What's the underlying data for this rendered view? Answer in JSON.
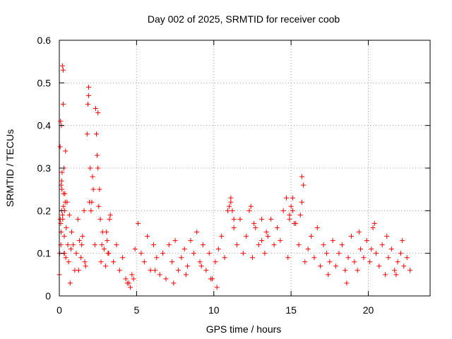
{
  "chart_data": {
    "type": "scatter",
    "title": "Day 002 of 2025, SRMTID for receiver coob",
    "xlabel": "GPS time / hours",
    "ylabel": "SRMTID / TECUs",
    "xlim": [
      0,
      24
    ],
    "ylim": [
      0,
      0.6
    ],
    "xticks": [
      0,
      5,
      10,
      15,
      20
    ],
    "yticks": [
      0,
      0.1,
      0.2,
      0.3,
      0.4,
      0.5,
      0.6
    ],
    "xtick_labels": [
      "0",
      "5",
      "10",
      "15",
      "20"
    ],
    "ytick_labels": [
      "0",
      "0.1",
      "0.2",
      "0.3",
      "0.4",
      "0.5",
      "0.6"
    ],
    "grid": true,
    "marker": "+",
    "color": "#ff0000",
    "series": [
      {
        "name": "coob",
        "x": [
          0.0,
          0.05,
          0.1,
          0.15,
          0.2,
          0.25,
          0.3,
          0.35,
          0.4,
          0.5,
          0.6,
          0.7,
          0.8,
          0.9,
          1.0,
          1.1,
          1.2,
          1.3,
          1.4,
          1.5,
          1.6,
          1.7,
          1.8,
          1.9,
          2.0,
          2.1,
          2.2,
          2.3,
          2.4,
          2.5,
          2.6,
          2.7,
          2.8,
          2.9,
          3.0,
          3.1,
          3.2,
          3.3,
          3.5,
          3.7,
          3.9,
          4.1,
          4.3,
          4.5,
          4.7,
          4.9,
          5.1,
          5.3,
          5.5,
          5.7,
          5.9,
          6.1,
          6.3,
          6.5,
          6.7,
          6.9,
          7.1,
          7.3,
          7.5,
          7.7,
          7.9,
          8.1,
          8.3,
          8.5,
          8.7,
          8.9,
          9.1,
          9.3,
          9.5,
          9.7,
          9.9,
          10.1,
          10.3,
          10.5,
          10.7,
          10.9,
          11.1,
          11.3,
          11.5,
          11.7,
          11.9,
          12.1,
          12.3,
          12.5,
          12.7,
          12.9,
          13.1,
          13.3,
          13.5,
          13.7,
          13.9,
          14.1,
          14.3,
          14.5,
          14.7,
          14.9,
          15.1,
          15.3,
          15.5,
          15.7,
          15.9,
          16.1,
          16.3,
          16.5,
          16.7,
          16.9,
          17.1,
          17.3,
          17.5,
          17.7,
          17.9,
          18.1,
          18.3,
          18.5,
          18.7,
          18.9,
          19.1,
          19.3,
          19.5,
          19.7,
          19.9,
          20.1,
          20.3,
          20.5,
          20.7,
          20.9,
          21.1,
          21.3,
          21.5,
          21.7,
          21.9,
          22.1,
          22.3,
          22.5,
          22.7,
          0.08,
          0.12,
          0.18,
          0.22,
          0.28,
          0.33,
          0.38,
          0.15,
          0.25,
          0.45,
          0.55,
          0.65,
          0.75,
          1.85,
          1.9,
          1.95,
          2.05,
          2.15,
          2.35,
          2.45,
          2.5,
          2.55,
          2.65,
          2.75,
          0.02,
          0.06,
          0.09,
          0.13,
          0.17,
          0.21,
          0.27,
          0.32,
          0.36,
          0.42,
          1.25,
          1.45,
          1.65,
          3.05,
          3.15,
          3.25,
          14.8,
          14.9,
          15.0,
          15.1,
          15.2,
          15.6,
          15.7,
          15.8,
          11.0,
          11.1,
          11.2,
          11.3,
          12.4,
          12.6,
          13.1,
          13.4,
          6.2,
          7.4,
          8.2,
          9.2,
          9.8,
          10.2,
          17.4,
          18.6,
          19.4,
          20.2,
          20.4,
          21.2,
          21.8,
          22.2,
          4.4,
          4.6,
          4.8,
          0.11,
          0.31
        ],
        "y": [
          0.05,
          0.35,
          0.12,
          0.2,
          0.54,
          0.45,
          0.3,
          0.2,
          0.34,
          0.22,
          0.08,
          0.03,
          0.15,
          0.12,
          0.06,
          0.1,
          0.18,
          0.13,
          0.09,
          0.14,
          0.2,
          0.07,
          0.38,
          0.49,
          0.3,
          0.22,
          0.25,
          0.12,
          0.38,
          0.43,
          0.25,
          0.08,
          0.15,
          0.11,
          0.07,
          0.13,
          0.1,
          0.19,
          0.08,
          0.12,
          0.06,
          0.09,
          0.04,
          0.03,
          0.05,
          0.11,
          0.17,
          0.1,
          0.08,
          0.14,
          0.06,
          0.12,
          0.09,
          0.05,
          0.1,
          0.04,
          0.12,
          0.08,
          0.13,
          0.06,
          0.09,
          0.11,
          0.07,
          0.13,
          0.1,
          0.15,
          0.08,
          0.12,
          0.06,
          0.1,
          0.04,
          0.08,
          0.11,
          0.14,
          0.09,
          0.2,
          0.22,
          0.16,
          0.12,
          0.18,
          0.1,
          0.14,
          0.2,
          0.09,
          0.16,
          0.12,
          0.18,
          0.1,
          0.14,
          0.18,
          0.12,
          0.16,
          0.13,
          0.2,
          0.23,
          0.18,
          0.2,
          0.17,
          0.12,
          0.22,
          0.08,
          0.11,
          0.14,
          0.09,
          0.16,
          0.07,
          0.12,
          0.1,
          0.08,
          0.13,
          0.07,
          0.1,
          0.12,
          0.06,
          0.09,
          0.14,
          0.08,
          0.06,
          0.11,
          0.09,
          0.13,
          0.08,
          0.16,
          0.1,
          0.07,
          0.12,
          0.05,
          0.09,
          0.11,
          0.06,
          0.08,
          0.1,
          0.07,
          0.09,
          0.06,
          0.41,
          0.26,
          0.29,
          0.18,
          0.24,
          0.1,
          0.22,
          0.27,
          0.53,
          0.16,
          0.12,
          0.19,
          0.11,
          0.45,
          0.47,
          0.22,
          0.2,
          0.28,
          0.44,
          0.33,
          0.3,
          0.21,
          0.18,
          0.12,
          0.1,
          0.18,
          0.17,
          0.4,
          0.25,
          0.19,
          0.21,
          0.14,
          0.24,
          0.09,
          0.06,
          0.12,
          0.08,
          0.15,
          0.1,
          0.18,
          0.09,
          0.19,
          0.21,
          0.23,
          0.17,
          0.19,
          0.28,
          0.26,
          0.21,
          0.23,
          0.2,
          0.18,
          0.21,
          0.17,
          0.13,
          0.15,
          0.06,
          0.03,
          0.05,
          0.07,
          0.04,
          0.02,
          0.05,
          0.03,
          0.15,
          0.11,
          0.17,
          0.14,
          0.05,
          0.13,
          0.03,
          0.02,
          0.04,
          0.15,
          0.1
        ]
      }
    ]
  }
}
